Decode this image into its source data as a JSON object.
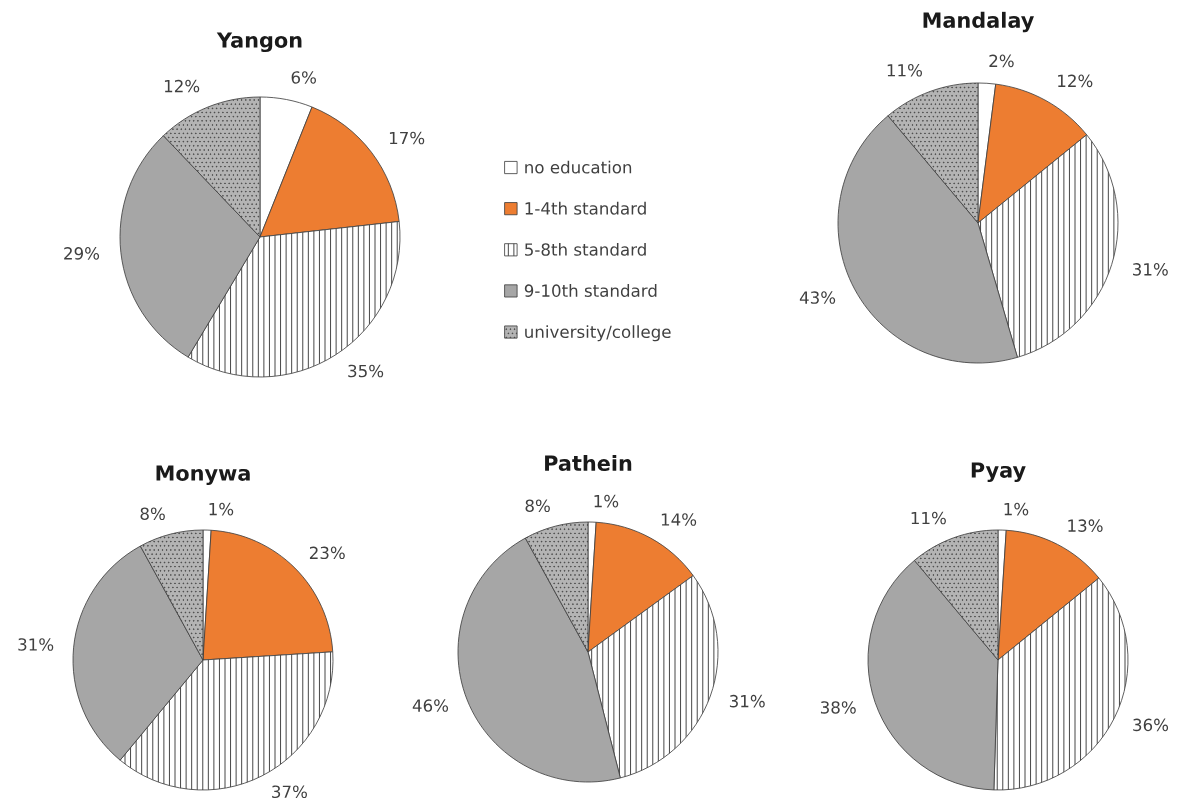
{
  "chart_data": [
    {
      "type": "pie",
      "title": "Yangon",
      "categories": [
        "no education",
        "1-4th standard",
        "5-8th standard",
        "9-10th standard",
        "university/college"
      ],
      "values": [
        6,
        17,
        35,
        29,
        12
      ],
      "colors": [
        "#ffffff",
        "#ed7d31",
        "#ffffff",
        "#a6a6a6",
        "#b4b4b4"
      ],
      "value_labels": [
        "6%",
        "17%",
        "35%",
        "29%",
        "12%"
      ],
      "legend": "right"
    },
    {
      "type": "pie",
      "title": "Mandalay",
      "categories": [
        null,
        null,
        null,
        null,
        null
      ],
      "values": [
        2,
        12,
        31,
        43,
        11
      ],
      "colors": [
        "#ffffff",
        "#ed7d31",
        "#ffffff",
        "#a6a6a6",
        "#b4b4b4"
      ],
      "value_labels": [
        "2%",
        "12%",
        "31%",
        "43%",
        "11%"
      ]
    },
    {
      "type": "pie",
      "title": "Monywa",
      "categories": [
        null,
        null,
        null,
        null,
        null
      ],
      "values": [
        1,
        23,
        37,
        31,
        8
      ],
      "colors": [
        "#ffffff",
        "#ed7d31",
        "#ffffff",
        "#a6a6a6",
        "#b4b4b4"
      ],
      "value_labels": [
        "1%",
        "23%",
        "37%",
        "31%",
        "8%"
      ]
    },
    {
      "type": "pie",
      "title": "Pathein",
      "categories": [
        null,
        null,
        null,
        null,
        null
      ],
      "values": [
        1,
        14,
        31,
        46,
        8
      ],
      "colors": [
        "#ffffff",
        "#ed7d31",
        "#ffffff",
        "#a6a6a6",
        "#b4b4b4"
      ],
      "value_labels": [
        "1%",
        "14%",
        "31%",
        "46%",
        "8%"
      ]
    },
    {
      "type": "pie",
      "title": "Pyay",
      "categories": [
        null,
        null,
        null,
        null,
        null
      ],
      "values": [
        1,
        13,
        36,
        38,
        11
      ],
      "colors": [
        "#ffffff",
        "#ed7d31",
        "#ffffff",
        "#a6a6a6",
        "#b4b4b4"
      ],
      "value_labels": [
        "1%",
        "13%",
        "36%",
        "38%",
        "11%"
      ]
    }
  ]
}
